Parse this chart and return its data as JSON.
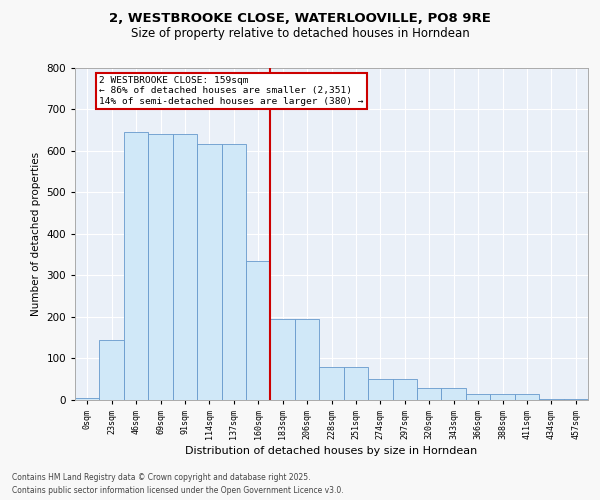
{
  "title_line1": "2, WESTBROOKE CLOSE, WATERLOOVILLE, PO8 9RE",
  "title_line2": "Size of property relative to detached houses in Horndean",
  "xlabel": "Distribution of detached houses by size in Horndean",
  "ylabel": "Number of detached properties",
  "bar_color": "#d0e8f8",
  "bar_edge_color": "#6699cc",
  "background_color": "#eaf0f8",
  "grid_color": "#ffffff",
  "vline_color": "#cc0000",
  "annotation_text_line1": "2 WESTBROOKE CLOSE: 159sqm",
  "annotation_text_line2": "← 86% of detached houses are smaller (2,351)",
  "annotation_text_line3": "14% of semi-detached houses are larger (380) →",
  "footer_line1": "Contains HM Land Registry data © Crown copyright and database right 2025.",
  "footer_line2": "Contains public sector information licensed under the Open Government Licence v3.0.",
  "categories": [
    "0sqm",
    "23sqm",
    "46sqm",
    "69sqm",
    "91sqm",
    "114sqm",
    "137sqm",
    "160sqm",
    "183sqm",
    "206sqm",
    "228sqm",
    "251sqm",
    "274sqm",
    "297sqm",
    "320sqm",
    "343sqm",
    "366sqm",
    "388sqm",
    "411sqm",
    "434sqm",
    "457sqm"
  ],
  "values": [
    5,
    145,
    645,
    640,
    640,
    615,
    615,
    335,
    195,
    195,
    80,
    80,
    50,
    50,
    30,
    30,
    14,
    14,
    14,
    2,
    2
  ],
  "ylim": [
    0,
    800
  ],
  "yticks": [
    0,
    100,
    200,
    300,
    400,
    500,
    600,
    700,
    800
  ],
  "fig_width": 6.0,
  "fig_height": 5.0,
  "fig_bg": "#f8f8f8",
  "vline_x": 7.5
}
